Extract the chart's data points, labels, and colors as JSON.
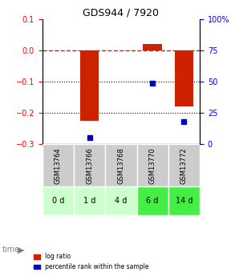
{
  "title": "GDS944 / 7920",
  "samples": [
    "GSM13764",
    "GSM13766",
    "GSM13768",
    "GSM13770",
    "GSM13772"
  ],
  "time_labels": [
    "0 d",
    "1 d",
    "4 d",
    "6 d",
    "14 d"
  ],
  "log_ratio": [
    0.0,
    -0.225,
    0.0,
    0.02,
    -0.18
  ],
  "percentile_rank": [
    null,
    5,
    null,
    49,
    18
  ],
  "ylim_left": [
    -0.3,
    0.1
  ],
  "ylim_right": [
    0,
    100
  ],
  "yticks_left": [
    -0.3,
    -0.2,
    -0.1,
    0.0,
    0.1
  ],
  "yticks_right": [
    0,
    25,
    50,
    75,
    100
  ],
  "hlines": [
    -0.1,
    -0.2
  ],
  "bar_color": "#cc2200",
  "dot_color": "#0000cc",
  "dashed_color": "#cc2200",
  "grid_color": "#000000",
  "sample_bg": "#cccccc",
  "time_bg_colors": [
    "#ccffcc",
    "#ccffcc",
    "#ccffcc",
    "#44ee44",
    "#44ee44"
  ],
  "bar_width": 0.6,
  "figsize": [
    2.93,
    3.45
  ],
  "dpi": 100
}
